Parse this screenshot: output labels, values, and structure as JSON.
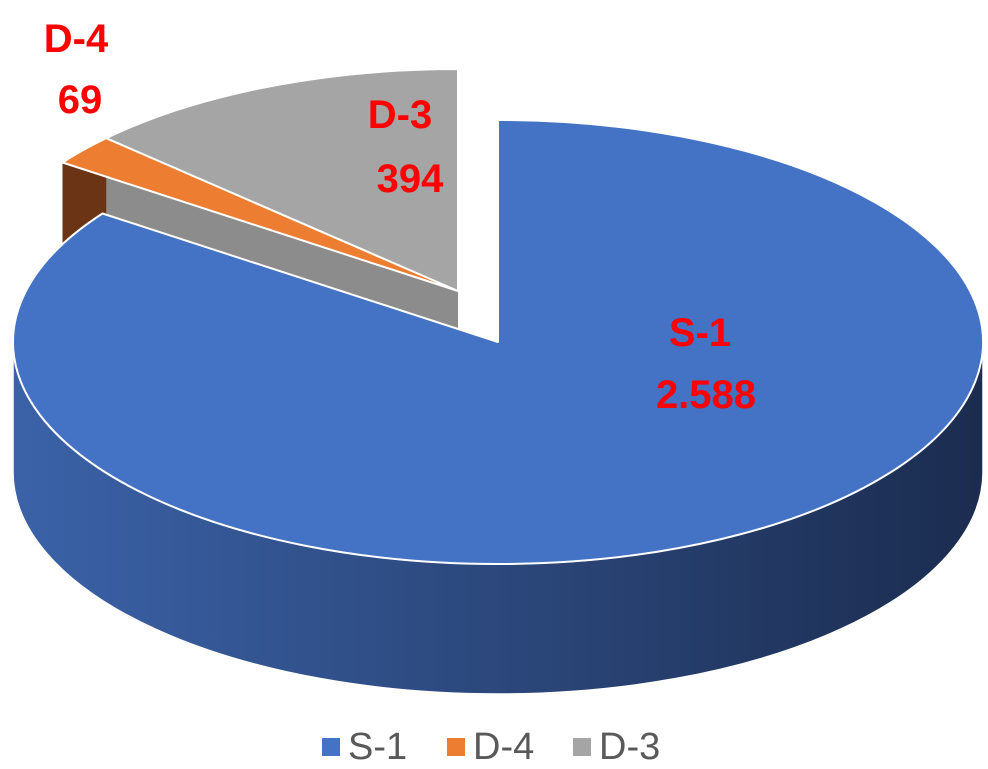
{
  "chart_data": {
    "type": "pie",
    "style": "3d-exploded",
    "categories": [
      "S-1",
      "D-4",
      "D-3"
    ],
    "values": [
      2588,
      69,
      394
    ],
    "value_labels": [
      "2.588",
      "69",
      "394"
    ],
    "colors": [
      "#4472C4",
      "#ED7D31",
      "#A5A5A5"
    ],
    "side_colors": [
      "#2E4A82",
      "#6B3415",
      "#8C8C8C"
    ],
    "label_color": "#FF0000",
    "exploded": "S-1",
    "legend_position": "bottom"
  }
}
